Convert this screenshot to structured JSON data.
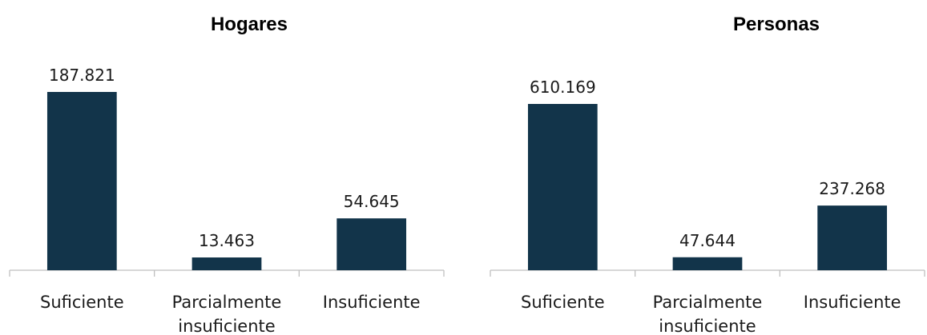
{
  "chart_data": [
    {
      "type": "bar",
      "title": "Hogares",
      "categories": [
        "Suficiente",
        "Parcialmente insuficiente",
        "Insuficiente"
      ],
      "values": [
        187821,
        13463,
        54645
      ],
      "value_labels": [
        "187.821",
        "13.463",
        "54.645"
      ],
      "xlabel": "",
      "ylabel": "",
      "grid": false,
      "color": "#12344a"
    },
    {
      "type": "bar",
      "title": "Personas",
      "categories": [
        "Suficiente",
        "Parcialmente insuficiente",
        "Insuficiente"
      ],
      "values": [
        610169,
        47644,
        237268
      ],
      "value_labels": [
        "610.169",
        "47.644",
        "237.268"
      ],
      "xlabel": "",
      "ylabel": "",
      "grid": false,
      "color": "#12344a"
    }
  ]
}
